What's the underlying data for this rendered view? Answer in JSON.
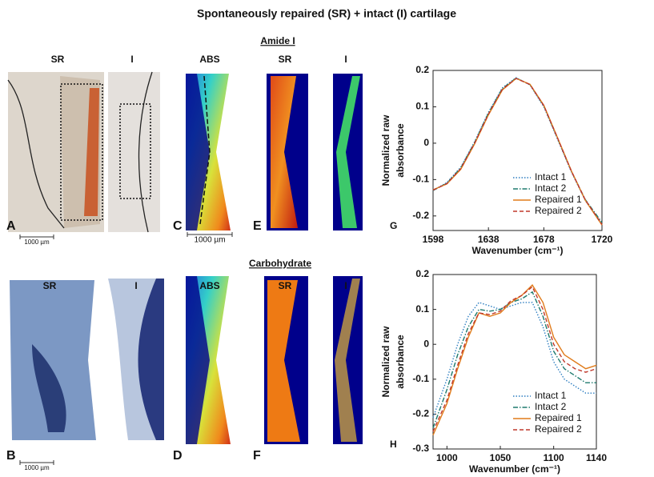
{
  "title": "Spontaneously repaired (SR) + intact (I) cartilage",
  "sections": [
    "Amide I",
    "Carbohydrate"
  ],
  "rows": [
    {
      "image_labels": [
        "SR",
        "I",
        "ABS",
        "SR",
        "I"
      ],
      "panel_labels": [
        "A",
        "C",
        "E"
      ],
      "scale_bars": [
        "1000 µm",
        "1000 µm"
      ]
    },
    {
      "image_labels": [
        "SR",
        "I",
        "ABS",
        "SR",
        "I"
      ],
      "panel_labels": [
        "B",
        "D",
        "F"
      ],
      "scale_bars": [
        "1000 µm"
      ]
    }
  ],
  "chart_data": [
    {
      "type": "line",
      "panel_label": "G",
      "y_label": [
        "Normalized raw",
        "absorbance"
      ],
      "x_label": "Wavenumber (cm⁻¹)",
      "x": [
        1598,
        1608,
        1618,
        1628,
        1638,
        1648,
        1658,
        1668,
        1678,
        1688,
        1698,
        1708,
        1720
      ],
      "xlim": [
        1598,
        1720
      ],
      "xticks": [
        1598,
        1638,
        1678,
        1720
      ],
      "ylim": [
        -0.24,
        0.2
      ],
      "yticks": [
        -0.2,
        -0.1,
        0,
        0.1,
        0.2
      ],
      "legend": "lower right",
      "series": [
        {
          "name": "Intact 1",
          "color": "#2f7fc1",
          "style": "dotted",
          "values": [
            -0.13,
            -0.108,
            -0.066,
            0.004,
            0.085,
            0.152,
            0.18,
            0.16,
            0.1,
            0.01,
            -0.08,
            -0.158,
            -0.222
          ]
        },
        {
          "name": "Intact 2",
          "color": "#1e7a6e",
          "style": "dashdot",
          "values": [
            -0.13,
            -0.11,
            -0.068,
            0.002,
            0.083,
            0.15,
            0.179,
            0.161,
            0.102,
            0.012,
            -0.078,
            -0.155,
            -0.218
          ]
        },
        {
          "name": "Repaired 1",
          "color": "#e07b1a",
          "style": "solid",
          "values": [
            -0.128,
            -0.112,
            -0.072,
            -0.002,
            0.078,
            0.146,
            0.178,
            0.162,
            0.104,
            0.014,
            -0.077,
            -0.157,
            -0.225
          ]
        },
        {
          "name": "Repaired 2",
          "color": "#c0392b",
          "style": "dashed",
          "values": [
            -0.129,
            -0.111,
            -0.07,
            0.0,
            0.08,
            0.148,
            0.178,
            0.161,
            0.103,
            0.013,
            -0.078,
            -0.156,
            -0.223
          ]
        }
      ]
    },
    {
      "type": "line",
      "panel_label": "H",
      "y_label": [
        "Normalized raw",
        "absorbance"
      ],
      "x_label": "Wavenumber (cm⁻¹)",
      "x": [
        987,
        1000,
        1010,
        1020,
        1030,
        1040,
        1050,
        1060,
        1070,
        1080,
        1090,
        1100,
        1110,
        1120,
        1130,
        1140
      ],
      "xlim": [
        987,
        1140
      ],
      "xticks": [
        1000,
        1050,
        1100,
        1140
      ],
      "ylim": [
        -0.3,
        0.2
      ],
      "yticks": [
        -0.3,
        -0.2,
        -0.1,
        0,
        0.1,
        0.2
      ],
      "legend": "lower right",
      "series": [
        {
          "name": "Intact 1",
          "color": "#2f7fc1",
          "style": "dotted",
          "values": [
            -0.21,
            -0.1,
            0.0,
            0.08,
            0.12,
            0.11,
            0.1,
            0.11,
            0.12,
            0.12,
            0.05,
            -0.05,
            -0.1,
            -0.12,
            -0.14,
            -0.14
          ]
        },
        {
          "name": "Intact 2",
          "color": "#1e7a6e",
          "style": "dashdot",
          "values": [
            -0.24,
            -0.13,
            -0.03,
            0.05,
            0.1,
            0.095,
            0.1,
            0.12,
            0.13,
            0.15,
            0.08,
            -0.02,
            -0.07,
            -0.09,
            -0.11,
            -0.11
          ]
        },
        {
          "name": "Repaired 1",
          "color": "#e07b1a",
          "style": "solid",
          "values": [
            -0.26,
            -0.17,
            -0.07,
            0.02,
            0.09,
            0.08,
            0.09,
            0.12,
            0.14,
            0.17,
            0.12,
            0.02,
            -0.03,
            -0.05,
            -0.07,
            -0.06
          ]
        },
        {
          "name": "Repaired 2",
          "color": "#c0392b",
          "style": "dashed",
          "values": [
            -0.25,
            -0.16,
            -0.06,
            0.03,
            0.09,
            0.085,
            0.095,
            0.125,
            0.14,
            0.165,
            0.1,
            0.0,
            -0.05,
            -0.07,
            -0.08,
            -0.07
          ]
        }
      ]
    }
  ]
}
